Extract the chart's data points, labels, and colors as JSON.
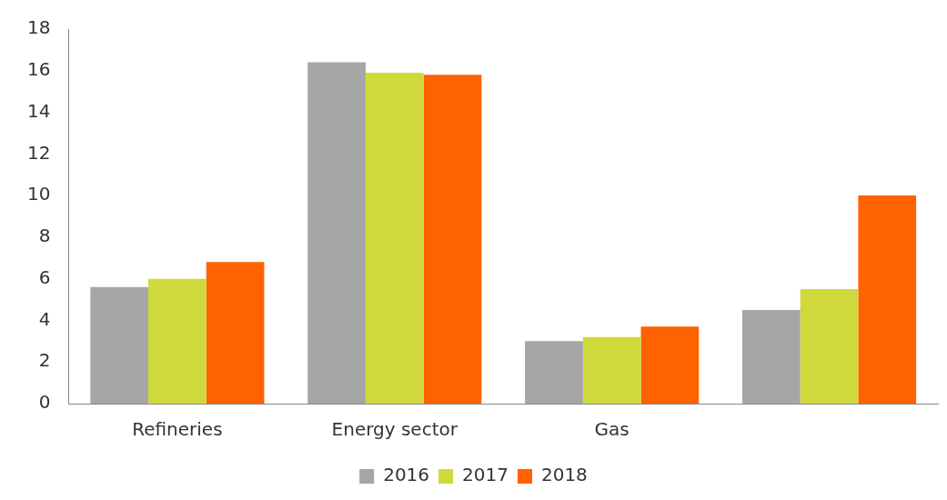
{
  "chart_data": {
    "type": "bar",
    "categories": [
      "Refineries",
      "Energy sector",
      "Gas",
      null
    ],
    "series": [
      {
        "name": "2016",
        "color": "#a6a6a6",
        "values": [
          5.6,
          16.4,
          3.0,
          4.5
        ]
      },
      {
        "name": "2017",
        "color": "#cfd93b",
        "values": [
          6.0,
          15.9,
          3.2,
          5.5
        ]
      },
      {
        "name": "2018",
        "color": "#ff6200",
        "values": [
          6.8,
          15.8,
          3.7,
          10.0
        ]
      }
    ],
    "ylim": [
      0,
      18
    ],
    "yticks": [
      0,
      2,
      4,
      6,
      8,
      10,
      12,
      14,
      16,
      18
    ],
    "grid": false,
    "legend": "bottom"
  }
}
